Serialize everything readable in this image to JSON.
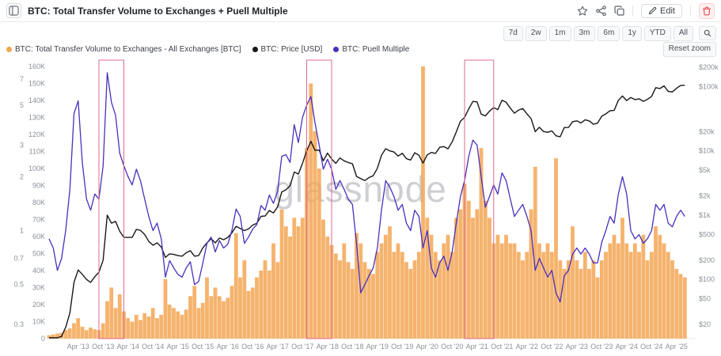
{
  "header": {
    "title": "BTC: Total Transfer Volume to Exchanges + Puell Multiple",
    "edit_label": "Edit"
  },
  "toolbar": {
    "range_buttons": [
      "7d",
      "2w",
      "1m",
      "3m",
      "6m",
      "1y",
      "YTD",
      "All"
    ],
    "reset_zoom_label": "Reset zoom"
  },
  "legend": [
    {
      "label": "BTC: Total Transfer Volume to Exchanges - All Exchanges [BTC]",
      "color": "#f3a653"
    },
    {
      "label": "BTC: Price [USD]",
      "color": "#17181a"
    },
    {
      "label": "BTC: Puell Multiple",
      "color": "#4a2fbd"
    }
  ],
  "watermark": "glassnode",
  "chart_data": {
    "type": "mixed",
    "x_start_month": "2012-09",
    "x_tick_labels": [
      "Apr '13",
      "Oct '13",
      "Apr '14",
      "Oct '14",
      "Apr '15",
      "Oct '15",
      "Apr '16",
      "Oct '16",
      "Apr '17",
      "Oct '17",
      "Apr '18",
      "Oct '18",
      "Apr '19",
      "Oct '19",
      "Apr '20",
      "Oct '20",
      "Apr '21",
      "Oct '21",
      "Apr '22",
      "Oct '22",
      "Apr '23",
      "Oct '23",
      "Apr '24",
      "Oct '24",
      "Apr '25"
    ],
    "axes": {
      "puell": {
        "side": "left-outer",
        "scale": "log",
        "min": 0.3,
        "max": 7,
        "ticks": [
          {
            "v": 7,
            "label": "7"
          },
          {
            "v": 5,
            "label": "5"
          },
          {
            "v": 3,
            "label": "3"
          },
          {
            "v": 2,
            "label": "2"
          },
          {
            "v": 1,
            "label": "1"
          },
          {
            "v": 0.7,
            "label": "0.7"
          },
          {
            "v": 0.5,
            "label": "0.5"
          },
          {
            "v": 0.3,
            "label": "0.3"
          }
        ]
      },
      "volume": {
        "side": "left-inner",
        "scale": "linear",
        "min": 0,
        "max": 160000,
        "ticks": [
          {
            "v": 160000,
            "label": "160K"
          },
          {
            "v": 150000,
            "label": "150K"
          },
          {
            "v": 140000,
            "label": "140K"
          },
          {
            "v": 130000,
            "label": "130K"
          },
          {
            "v": 120000,
            "label": "120K"
          },
          {
            "v": 110000,
            "label": "110K"
          },
          {
            "v": 100000,
            "label": "100K"
          },
          {
            "v": 90000,
            "label": "90K"
          },
          {
            "v": 80000,
            "label": "80K"
          },
          {
            "v": 70000,
            "label": "70K"
          },
          {
            "v": 60000,
            "label": "60K"
          },
          {
            "v": 50000,
            "label": "50K"
          },
          {
            "v": 40000,
            "label": "40K"
          },
          {
            "v": 30000,
            "label": "30K"
          },
          {
            "v": 20000,
            "label": "20K"
          },
          {
            "v": 10000,
            "label": "10K"
          },
          {
            "v": 0,
            "label": "0"
          }
        ]
      },
      "price": {
        "side": "right",
        "scale": "log",
        "min": 20,
        "max": 200000,
        "ticks": [
          {
            "v": 200000,
            "label": "$200k"
          },
          {
            "v": 100000,
            "label": "$100k"
          },
          {
            "v": 20000,
            "label": "$20k"
          },
          {
            "v": 10000,
            "label": "$10k"
          },
          {
            "v": 5000,
            "label": "$5k"
          },
          {
            "v": 2000,
            "label": "$2k"
          },
          {
            "v": 1000,
            "label": "$1k"
          },
          {
            "v": 500,
            "label": "$500"
          },
          {
            "v": 200,
            "label": "$200"
          },
          {
            "v": 100,
            "label": "$100"
          },
          {
            "v": 50,
            "label": "$50"
          },
          {
            "v": 20,
            "label": "$20"
          }
        ]
      }
    },
    "series": [
      {
        "name": "BTC: Total Transfer Volume to Exchanges - All Exchanges [BTC]",
        "type": "bar",
        "axis": "volume",
        "color": "#f3a653",
        "values": [
          2000,
          2500,
          3000,
          3500,
          5000,
          6000,
          9000,
          12000,
          7000,
          5000,
          6500,
          5500,
          5000,
          9000,
          22000,
          30000,
          18000,
          26000,
          16000,
          12000,
          10000,
          14000,
          11000,
          15000,
          13000,
          18000,
          12000,
          14000,
          35000,
          20000,
          18000,
          16000,
          14000,
          17000,
          25000,
          31000,
          18000,
          21000,
          36000,
          25000,
          30000,
          25000,
          22000,
          24000,
          31000,
          62000,
          36000,
          46000,
          28000,
          30000,
          36000,
          40000,
          46000,
          40000,
          56000,
          45000,
          76000,
          66000,
          60000,
          71000,
          66000,
          71000,
          112000,
          150000,
          122000,
          100000,
          70000,
          60000,
          55000,
          50000,
          46000,
          56000,
          45000,
          41000,
          62000,
          56000,
          45000,
          41000,
          38000,
          51000,
          56000,
          61000,
          66000,
          51000,
          56000,
          51000,
          45000,
          41000,
          46000,
          51000,
          160000,
          71000,
          61000,
          51000,
          46000,
          56000,
          61000,
          51000,
          71000,
          76000,
          91000,
          81000,
          71000,
          76000,
          112000,
          81000,
          71000,
          56000,
          61000,
          56000,
          61000,
          56000,
          56000,
          51000,
          46000,
          51000,
          76000,
          101000,
          56000,
          51000,
          56000,
          51000,
          106000,
          46000,
          41000,
          46000,
          66000,
          46000,
          41000,
          51000,
          41000,
          46000,
          36000,
          46000,
          51000,
          56000,
          61000,
          56000,
          71000,
          56000,
          51000,
          56000,
          51000,
          61000,
          46000,
          51000,
          66000,
          61000,
          56000,
          51000,
          46000,
          41000,
          38000,
          36000
        ]
      },
      {
        "name": "BTC: Price [USD]",
        "type": "line",
        "axis": "price",
        "color": "#17181a",
        "values": [
          12,
          11,
          12,
          13,
          18,
          30,
          90,
          140,
          120,
          100,
          90,
          110,
          130,
          200,
          1000,
          750,
          800,
          560,
          450,
          450,
          450,
          600,
          580,
          500,
          390,
          340,
          370,
          320,
          220,
          250,
          245,
          235,
          230,
          260,
          280,
          230,
          235,
          310,
          370,
          430,
          370,
          440,
          415,
          450,
          530,
          670,
          620,
          575,
          610,
          700,
          745,
          960,
          970,
          1180,
          1080,
          1350,
          2300,
          2480,
          2870,
          4700,
          4350,
          6450,
          10000,
          14100,
          10200,
          10300,
          7000,
          9250,
          7500,
          6400,
          7750,
          7000,
          6600,
          6300,
          4000,
          3700,
          3460,
          3850,
          4100,
          5350,
          8550,
          10800,
          10000,
          9600,
          8300,
          9200,
          7550,
          7200,
          9350,
          8550,
          6440,
          8650,
          9450,
          9140,
          11350,
          11650,
          10780,
          13800,
          19700,
          29000,
          33100,
          45100,
          58800,
          57750,
          37300,
          35000,
          41600,
          47150,
          43800,
          61300,
          57000,
          46200,
          38500,
          43200,
          45500,
          37700,
          31800,
          19900,
          23300,
          20050,
          19400,
          20500,
          17150,
          16550,
          23100,
          23150,
          28500,
          29250,
          27200,
          30450,
          29250,
          25950,
          26950,
          34650,
          37700,
          42250,
          42550,
          61150,
          71300,
          60650,
          67500,
          62750,
          64600,
          58950,
          63350,
          70200,
          96400,
          93400,
          102400,
          84350,
          82550,
          94200,
          104000,
          105000
        ]
      },
      {
        "name": "BTC: Puell Multiple",
        "type": "line",
        "axis": "puell",
        "color": "#4a2fbd",
        "values": [
          0.9,
          0.8,
          0.6,
          0.7,
          1.0,
          1.7,
          4.5,
          5.3,
          2.4,
          1.5,
          1.3,
          1.6,
          1.5,
          2.3,
          7.6,
          5.2,
          4.4,
          2.7,
          2.3,
          2.0,
          1.8,
          2.2,
          1.9,
          1.5,
          1.2,
          1.0,
          1.1,
          0.9,
          0.55,
          0.68,
          0.62,
          0.57,
          0.55,
          0.62,
          0.67,
          0.5,
          0.52,
          0.66,
          0.85,
          0.92,
          0.76,
          0.88,
          0.8,
          0.84,
          1.0,
          1.32,
          1.2,
          0.85,
          0.92,
          1.02,
          1.08,
          1.38,
          1.3,
          1.58,
          1.42,
          1.66,
          2.6,
          2.65,
          2.4,
          3.9,
          3.1,
          4.3,
          5.0,
          5.6,
          4.0,
          3.0,
          2.2,
          2.5,
          2.2,
          1.7,
          1.9,
          1.7,
          1.5,
          1.4,
          0.85,
          0.45,
          0.5,
          0.56,
          0.62,
          0.8,
          1.3,
          1.9,
          1.75,
          1.55,
          1.3,
          1.4,
          1.1,
          1.0,
          1.3,
          1.2,
          0.8,
          1.0,
          0.62,
          0.55,
          0.66,
          0.72,
          0.6,
          0.76,
          1.1,
          1.55,
          1.9,
          2.6,
          3.2,
          3.0,
          2.0,
          1.35,
          1.55,
          1.8,
          1.6,
          2.1,
          1.9,
          1.5,
          1.2,
          1.3,
          1.4,
          1.2,
          1.0,
          0.6,
          0.7,
          0.62,
          0.55,
          0.6,
          0.45,
          0.4,
          0.56,
          0.6,
          0.74,
          0.8,
          0.74,
          0.8,
          0.74,
          0.66,
          0.66,
          0.86,
          1.0,
          1.2,
          1.1,
          1.6,
          2.0,
          1.6,
          1.0,
          0.9,
          0.95,
          0.85,
          0.9,
          1.0,
          1.4,
          1.3,
          1.4,
          1.1,
          1.05,
          1.2,
          1.3,
          1.2
        ]
      }
    ],
    "highlight_boxes": {
      "color": "#e2698b",
      "ranges": [
        {
          "start": "2013-09",
          "end": "2014-03"
        },
        {
          "start": "2017-11",
          "end": "2018-05"
        },
        {
          "start": "2021-01",
          "end": "2021-08"
        }
      ]
    }
  }
}
